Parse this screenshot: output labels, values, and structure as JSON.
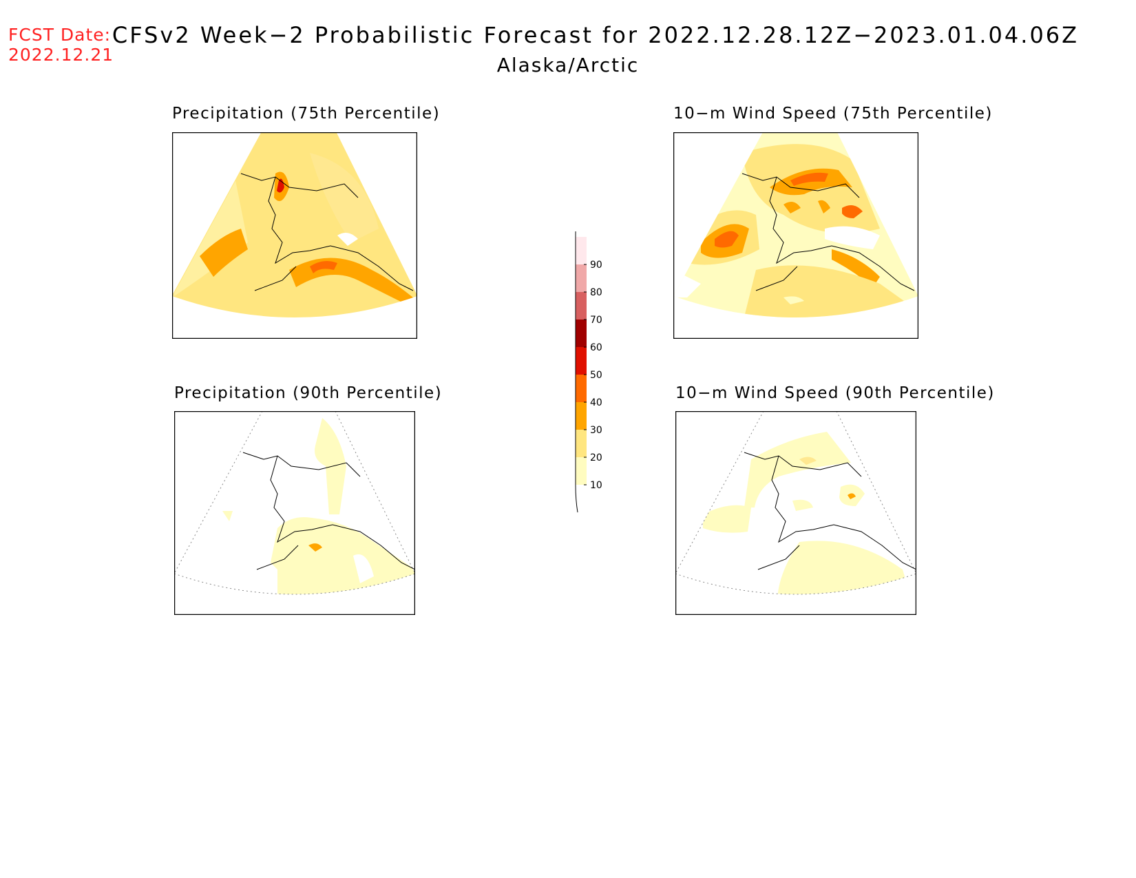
{
  "header": {
    "fcst_label": "FCST Date:",
    "fcst_date": "2022.12.21",
    "title": "CFSv2 Week−2 Probabilistic Forecast for 2022.12.28.12Z−2023.01.04.06Z",
    "subtitle": "Alaska/Arctic"
  },
  "panels": [
    {
      "id": "precip-75",
      "title": "Precipitation (75th Percentile)"
    },
    {
      "id": "wind-75",
      "title": "10−m Wind Speed (75th Percentile)"
    },
    {
      "id": "precip-90",
      "title": "Precipitation (90th Percentile)"
    },
    {
      "id": "wind-90",
      "title": "10−m Wind Speed (90th Percentile)"
    }
  ],
  "colorbar": {
    "levels": [
      "10",
      "20",
      "30",
      "40",
      "50",
      "60",
      "70",
      "80",
      "90"
    ],
    "colors": [
      "#fffcc0",
      "#ffe680",
      "#ffa500",
      "#ff6a00",
      "#e01000",
      "#a00000",
      "#d86060",
      "#f0a8a8",
      "#ffe8ec"
    ]
  }
}
